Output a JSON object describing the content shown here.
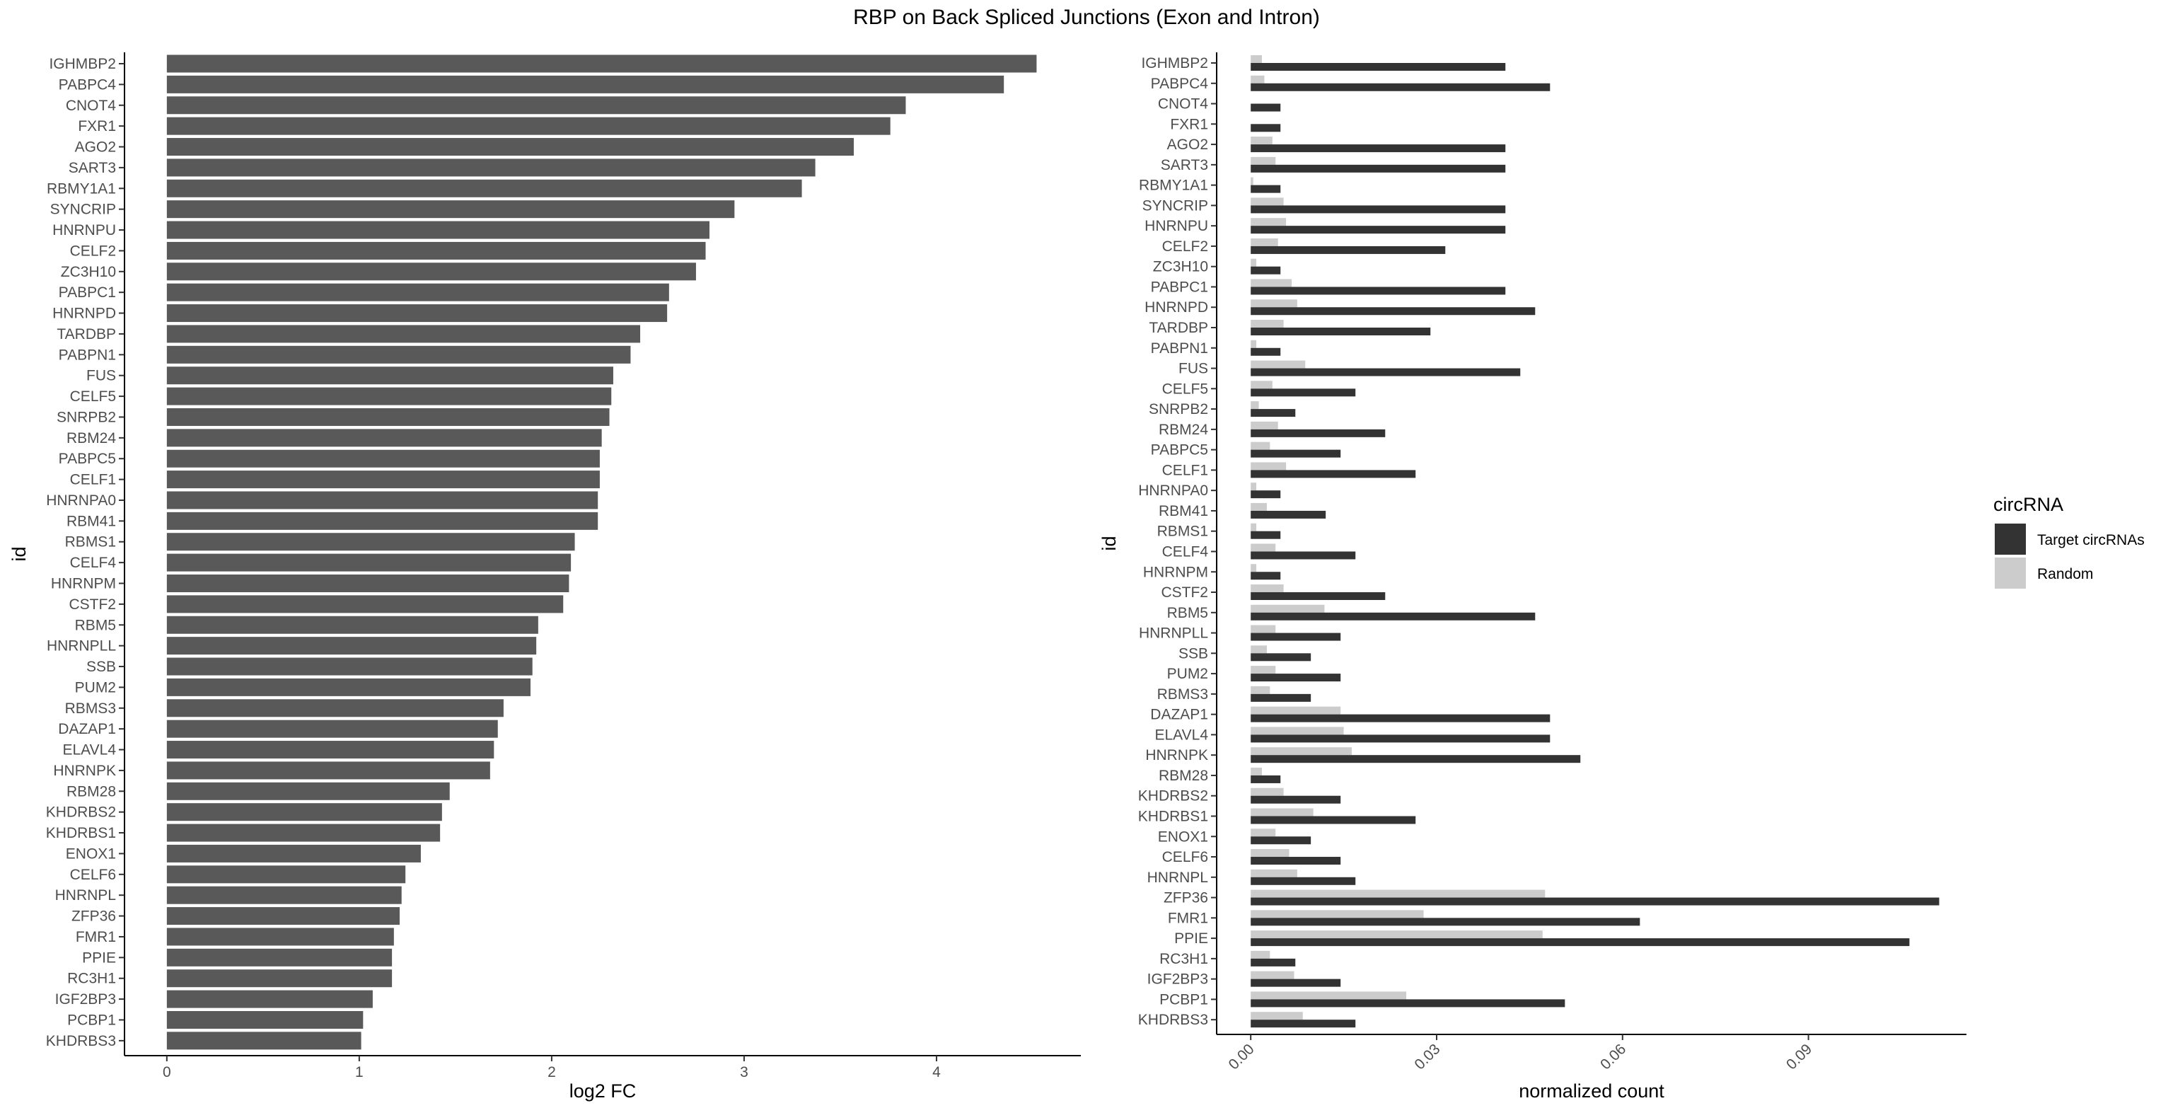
{
  "title": "RBP on Back Spliced Junctions (Exon and Intron)",
  "chart_data": [
    {
      "type": "bar",
      "orientation": "horizontal",
      "xlabel": "log2 FC",
      "ylabel": "id",
      "xlim": [
        -0.22,
        4.75
      ],
      "xticks": [
        "0",
        "1",
        "2",
        "3",
        "4"
      ],
      "categories": [
        "IGHMBP2",
        "PABPC4",
        "CNOT4",
        "FXR1",
        "AGO2",
        "SART3",
        "RBMY1A1",
        "SYNCRIP",
        "HNRNPU",
        "CELF2",
        "ZC3H10",
        "PABPC1",
        "HNRNPD",
        "TARDBP",
        "PABPN1",
        "FUS",
        "CELF5",
        "SNRPB2",
        "RBM24",
        "PABPC5",
        "CELF1",
        "HNRNPA0",
        "RBM41",
        "RBMS1",
        "CELF4",
        "HNRNPM",
        "CSTF2",
        "RBM5",
        "HNRNPLL",
        "SSB",
        "PUM2",
        "RBMS3",
        "DAZAP1",
        "ELAVL4",
        "HNRNPK",
        "RBM28",
        "KHDRBS2",
        "KHDRBS1",
        "ENOX1",
        "CELF6",
        "HNRNPL",
        "ZFP36",
        "FMR1",
        "PPIE",
        "RC3H1",
        "IGF2BP3",
        "PCBP1",
        "KHDRBS3"
      ],
      "values": [
        4.52,
        4.35,
        3.84,
        3.76,
        3.57,
        3.37,
        3.3,
        2.95,
        2.82,
        2.8,
        2.75,
        2.61,
        2.6,
        2.46,
        2.41,
        2.32,
        2.31,
        2.3,
        2.26,
        2.25,
        2.25,
        2.24,
        2.24,
        2.12,
        2.1,
        2.09,
        2.06,
        1.93,
        1.92,
        1.9,
        1.89,
        1.75,
        1.72,
        1.7,
        1.68,
        1.47,
        1.43,
        1.42,
        1.32,
        1.24,
        1.22,
        1.21,
        1.18,
        1.17,
        1.17,
        1.07,
        1.02,
        1.01
      ],
      "color": "#595959"
    },
    {
      "type": "bar",
      "orientation": "horizontal",
      "xlabel": "normalized count",
      "ylabel": "id",
      "xlim": [
        -0.0055,
        0.1155
      ],
      "xticks": [
        "0.00",
        "0.03",
        "0.06",
        "0.09"
      ],
      "categories": [
        "IGHMBP2",
        "PABPC4",
        "CNOT4",
        "FXR1",
        "AGO2",
        "SART3",
        "RBMY1A1",
        "SYNCRIP",
        "HNRNPU",
        "CELF2",
        "ZC3H10",
        "PABPC1",
        "HNRNPD",
        "TARDBP",
        "PABPN1",
        "FUS",
        "CELF5",
        "SNRPB2",
        "RBM24",
        "PABPC5",
        "CELF1",
        "HNRNPA0",
        "RBM41",
        "RBMS1",
        "CELF4",
        "HNRNPM",
        "CSTF2",
        "RBM5",
        "HNRNPLL",
        "SSB",
        "PUM2",
        "RBMS3",
        "DAZAP1",
        "ELAVL4",
        "HNRNPK",
        "RBM28",
        "KHDRBS2",
        "KHDRBS1",
        "ENOX1",
        "CELF6",
        "HNRNPL",
        "ZFP36",
        "FMR1",
        "PPIE",
        "RC3H1",
        "IGF2BP3",
        "PCBP1",
        "KHDRBS3"
      ],
      "series": [
        {
          "name": "Target circRNAs",
          "color": "#333333",
          "values": [
            0.0411,
            0.0483,
            0.0048,
            0.0048,
            0.0411,
            0.0411,
            0.0048,
            0.0411,
            0.0411,
            0.0314,
            0.0048,
            0.0411,
            0.0459,
            0.029,
            0.0048,
            0.0435,
            0.0169,
            0.0072,
            0.0217,
            0.0145,
            0.0266,
            0.0048,
            0.0121,
            0.0048,
            0.0169,
            0.0048,
            0.0217,
            0.0459,
            0.0145,
            0.0097,
            0.0145,
            0.0097,
            0.0483,
            0.0483,
            0.0532,
            0.0048,
            0.0145,
            0.0266,
            0.0097,
            0.0145,
            0.0169,
            0.1111,
            0.0628,
            0.1063,
            0.0072,
            0.0145,
            0.0507,
            0.0169
          ]
        },
        {
          "name": "Random",
          "color": "#cccccc",
          "values": [
            0.0018,
            0.0022,
            0.0,
            0.0,
            0.0035,
            0.004,
            0.0004,
            0.0053,
            0.0057,
            0.0044,
            0.0009,
            0.0066,
            0.0075,
            0.0053,
            0.0009,
            0.0088,
            0.0035,
            0.0013,
            0.0044,
            0.0031,
            0.0057,
            0.0009,
            0.0026,
            0.0009,
            0.004,
            0.0009,
            0.0053,
            0.0119,
            0.004,
            0.0026,
            0.004,
            0.0031,
            0.0145,
            0.015,
            0.0163,
            0.0018,
            0.0053,
            0.0101,
            0.004,
            0.0062,
            0.0075,
            0.0475,
            0.0279,
            0.0471,
            0.0031,
            0.007,
            0.0251,
            0.0084
          ]
        }
      ]
    }
  ],
  "legend": {
    "title": "circRNA",
    "items": [
      {
        "label": "Target circRNAs",
        "color": "#333333"
      },
      {
        "label": "Random",
        "color": "#cccccc"
      }
    ]
  }
}
